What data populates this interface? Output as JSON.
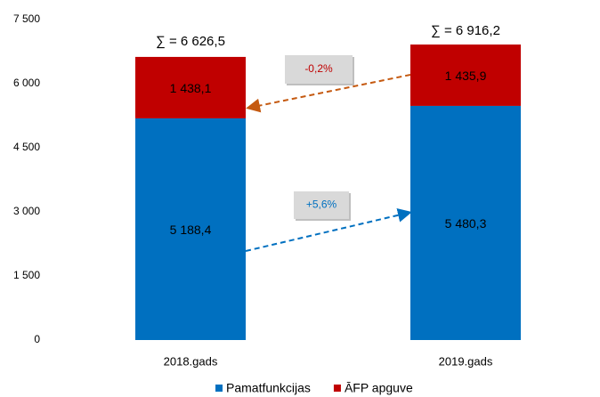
{
  "chart_data": {
    "type": "stacked_bar",
    "categories": [
      "2018.gads",
      "2019.gads"
    ],
    "series": [
      {
        "name": "Pamatfunkcijas",
        "color": "#0070c0",
        "values": [
          5188.4,
          5480.3
        ],
        "value_labels": [
          "5 188,4",
          "5 480,3"
        ]
      },
      {
        "name": "ĀFP apguve",
        "color": "#c00000",
        "values": [
          1438.1,
          1435.9
        ],
        "value_labels": [
          "1 438,1",
          "1 435,9"
        ]
      }
    ],
    "ylim": [
      0,
      7500
    ],
    "yticks": [
      0,
      {
        "value": 1500,
        "label": "1 500"
      },
      {
        "value": 3000,
        "label": "3 000"
      },
      {
        "value": 4500,
        "label": "4 500"
      },
      {
        "value": 6000,
        "label": "6 000"
      },
      {
        "value": 7500,
        "label": "7 500"
      }
    ],
    "grid": false,
    "legend": "bottom",
    "annotations": [
      {
        "text": "∑ = 6 626,5",
        "color": "#000000"
      },
      {
        "text": "∑ = 6 916,2",
        "color": "#000000"
      },
      {
        "text": "-0,2%",
        "color": "#c00000"
      },
      {
        "text": "+5,6%",
        "color": "#0070c0"
      }
    ]
  }
}
